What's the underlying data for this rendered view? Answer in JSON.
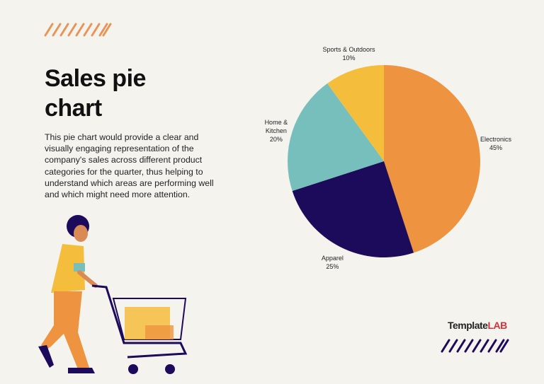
{
  "chart_data": {
    "type": "pie",
    "title": "Sales pie chart",
    "description": "This pie chart would provide a clear and visually engaging representation of the company's sales across different product categories for the quarter, thus helping to understand which areas are performing well and which might need more attention.",
    "categories": [
      "Electronics",
      "Apparel",
      "Home & Kitchen",
      "Sports & Outdoors"
    ],
    "values": [
      45,
      25,
      20,
      10
    ],
    "value_labels": [
      "45%",
      "25%",
      "20%",
      "10%"
    ],
    "colors": [
      "#ee9340",
      "#1c0a5a",
      "#77bfbc",
      "#f5bd3c"
    ]
  },
  "logo": {
    "text": "Template",
    "accent": "LAB"
  }
}
